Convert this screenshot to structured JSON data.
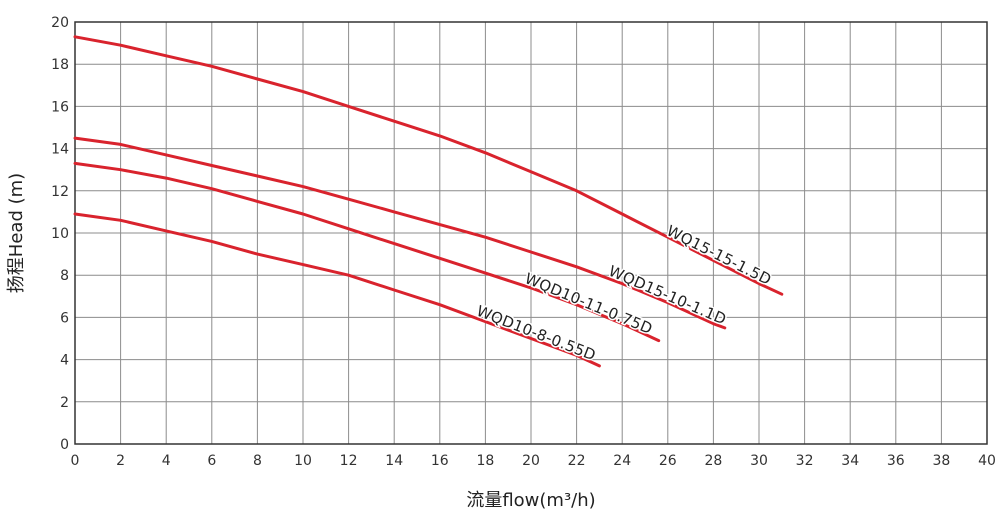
{
  "chart_data": {
    "type": "line",
    "title": "",
    "xlabel": "流量flow(m³/h)",
    "ylabel": "扬程Head (m)",
    "xlim": [
      0,
      40
    ],
    "ylim": [
      0,
      20
    ],
    "x_ticks": [
      "0",
      "2",
      "4",
      "6",
      "8",
      "10",
      "12",
      "14",
      "16",
      "18",
      "20",
      "22",
      "24",
      "26",
      "28",
      "30",
      "32",
      "34",
      "36",
      "38",
      "40"
    ],
    "y_ticks": [
      "0",
      "2",
      "4",
      "6",
      "8",
      "10",
      "12",
      "14",
      "16",
      "18",
      "20"
    ],
    "grid": true,
    "line_color": "#d9232d",
    "series": [
      {
        "name": "WQ15-15-1.5D",
        "x": [
          0,
          2,
          4,
          6,
          8,
          10,
          12,
          14,
          16,
          18,
          20,
          22,
          24,
          26,
          28,
          30,
          31
        ],
        "y": [
          19.3,
          18.9,
          18.4,
          17.9,
          17.3,
          16.7,
          16.0,
          15.3,
          14.6,
          13.8,
          12.9,
          12.0,
          10.9,
          9.8,
          8.7,
          7.6,
          7.1
        ]
      },
      {
        "name": "WQD15-10-1.1D",
        "x": [
          0,
          2,
          4,
          6,
          8,
          10,
          12,
          14,
          16,
          18,
          20,
          22,
          24,
          26,
          28,
          28.5
        ],
        "y": [
          14.5,
          14.2,
          13.7,
          13.2,
          12.7,
          12.2,
          11.6,
          11.0,
          10.4,
          9.8,
          9.1,
          8.4,
          7.6,
          6.7,
          5.7,
          5.5
        ]
      },
      {
        "name": "WQD10-11-0.75D",
        "x": [
          0,
          2,
          4,
          6,
          8,
          10,
          12,
          14,
          16,
          18,
          20,
          22,
          24,
          25.6
        ],
        "y": [
          13.3,
          13.0,
          12.6,
          12.1,
          11.5,
          10.9,
          10.2,
          9.5,
          8.8,
          8.1,
          7.4,
          6.6,
          5.7,
          4.9
        ]
      },
      {
        "name": "WQD10-8-0.55D",
        "x": [
          0,
          2,
          4,
          6,
          8,
          10,
          12,
          14,
          16,
          18,
          20,
          22,
          23
        ],
        "y": [
          10.9,
          10.6,
          10.1,
          9.6,
          9.0,
          8.5,
          8.0,
          7.3,
          6.6,
          5.8,
          5.0,
          4.2,
          3.7
        ]
      }
    ]
  }
}
